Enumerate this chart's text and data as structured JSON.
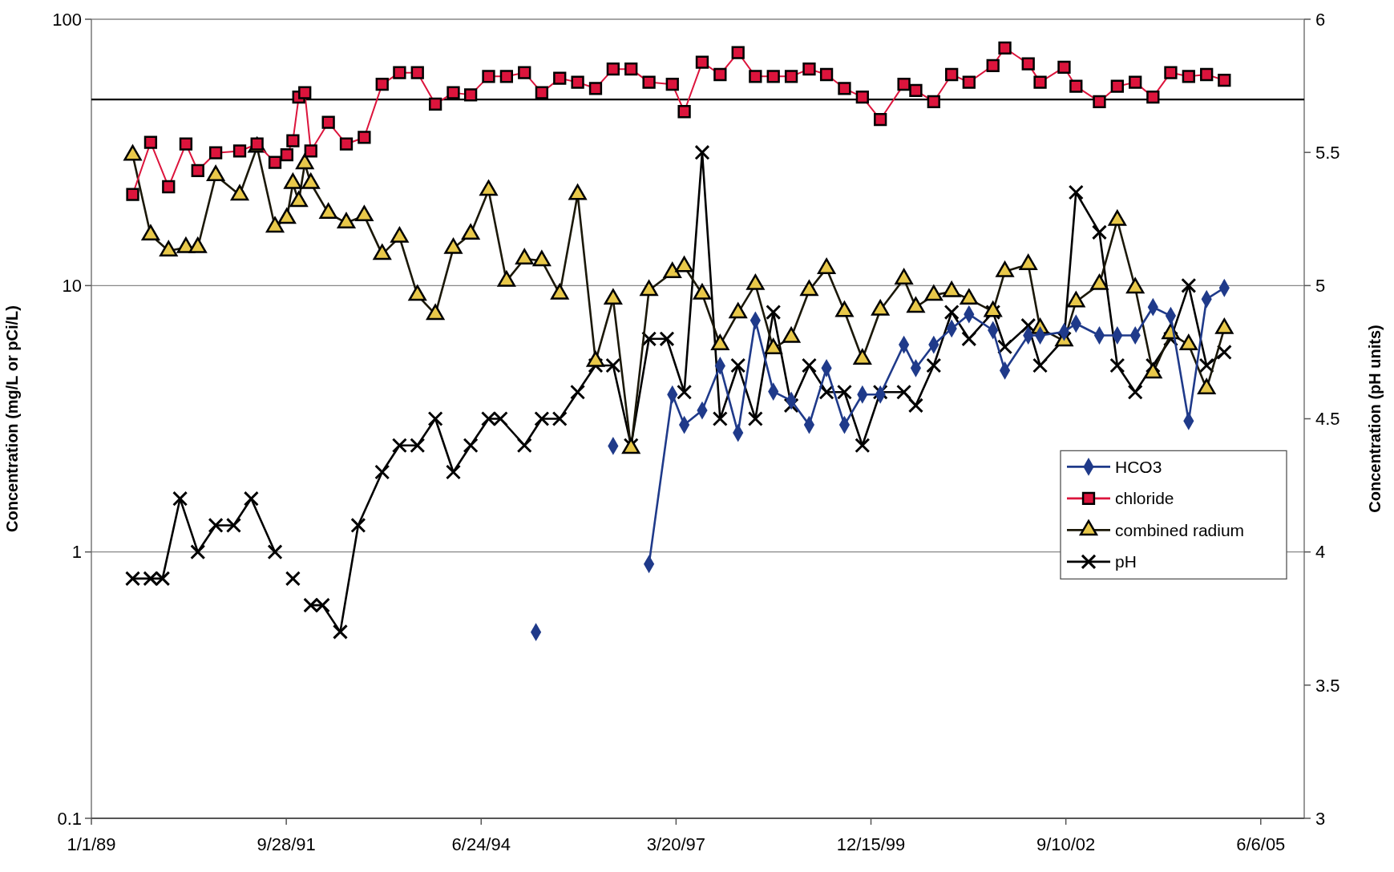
{
  "chart_data": {
    "type": "line",
    "ylabel": "Concentration (mg/L or pCi/L)",
    "y2label": "Concentration (pH units)",
    "xlim": [
      "1989-01-01",
      "2006-01-15"
    ],
    "xticks": [
      {
        "value": "1989-01-01",
        "label": "1/1/89"
      },
      {
        "value": "1991-09-28",
        "label": "9/28/91"
      },
      {
        "value": "1994-06-24",
        "label": "6/24/94"
      },
      {
        "value": "1997-03-20",
        "label": "3/20/97"
      },
      {
        "value": "1999-12-15",
        "label": "12/15/99"
      },
      {
        "value": "2002-09-10",
        "label": "9/10/02"
      },
      {
        "value": "2005-06-06",
        "label": "6/6/05"
      }
    ],
    "ylim": [
      0.1,
      100
    ],
    "yticks": [
      0.1,
      1,
      10,
      100
    ],
    "log": "y",
    "y2lim": [
      3,
      6
    ],
    "y2ticks": [
      3,
      3.5,
      4,
      4.5,
      5,
      5.5,
      6
    ],
    "grid": "y",
    "legend": "right",
    "ref_lines": [
      {
        "axis": "y",
        "value": 50,
        "color": "#000000"
      }
    ],
    "series": [
      {
        "name": "HCO3",
        "color": "#1f3a8a",
        "marker": "diamond",
        "x": [
          "1995-04",
          "1995-10",
          "1996-05",
          "1996-08",
          "1996-11",
          "1997-03",
          "1997-05",
          "1997-08",
          "1997-11",
          "1998-02",
          "1998-05",
          "1998-08",
          "1998-11",
          "1999-02",
          "1999-05",
          "1999-08",
          "1999-11",
          "2000-02",
          "2000-06",
          "2000-08",
          "2000-11",
          "2001-02",
          "2001-05",
          "2001-09",
          "2001-11",
          "2002-03",
          "2002-05",
          "2002-09",
          "2002-11",
          "2003-03",
          "2003-06",
          "2003-09",
          "2003-12",
          "2004-03",
          "2004-06",
          "2004-09",
          "2004-12"
        ],
        "values": [
          0.5,
          null,
          2.5,
          null,
          0.9,
          3.9,
          3.0,
          3.4,
          5.0,
          2.8,
          7.4,
          4.0,
          3.7,
          3.0,
          4.9,
          3.0,
          3.9,
          3.9,
          6.0,
          4.9,
          6.0,
          6.9,
          7.8,
          6.8,
          4.8,
          6.5,
          6.5,
          6.7,
          7.2,
          6.5,
          6.5,
          6.5,
          8.3,
          7.7,
          3.1,
          8.9,
          9.8
        ]
      },
      {
        "name": "chloride",
        "color": "#dc143c",
        "marker": "square",
        "x": [
          "1989-08",
          "1989-11",
          "1990-02",
          "1990-05",
          "1990-07",
          "1990-10",
          "1991-02",
          "1991-05",
          "1991-08",
          "1991-10",
          "1991-11",
          "1991-12",
          "1992-01",
          "1992-02",
          "1992-05",
          "1992-08",
          "1992-11",
          "1993-02",
          "1993-05",
          "1993-08",
          "1993-11",
          "1994-02",
          "1994-05",
          "1994-08",
          "1994-11",
          "1995-02",
          "1995-05",
          "1995-08",
          "1995-11",
          "1996-02",
          "1996-05",
          "1996-08",
          "1996-11",
          "1997-03",
          "1997-05",
          "1997-08",
          "1997-11",
          "1998-02",
          "1998-05",
          "1998-08",
          "1998-11",
          "1999-02",
          "1999-05",
          "1999-08",
          "1999-11",
          "2000-02",
          "2000-06",
          "2000-08",
          "2000-11",
          "2001-02",
          "2001-05",
          "2001-09",
          "2001-11",
          "2002-03",
          "2002-05",
          "2002-09",
          "2002-11",
          "2003-03",
          "2003-06",
          "2003-09",
          "2003-12",
          "2004-03",
          "2004-06",
          "2004-09",
          "2004-12"
        ],
        "values": [
          22,
          34.5,
          23.5,
          34,
          27,
          31.5,
          32,
          34,
          29,
          31,
          35,
          51,
          53,
          32,
          41,
          34,
          36,
          57,
          63,
          63,
          48,
          53,
          52,
          61,
          61,
          63,
          53,
          60,
          58,
          55,
          65,
          65,
          58,
          57,
          45,
          69,
          62,
          75,
          61,
          61,
          61,
          65,
          62,
          55,
          51,
          42,
          57,
          54,
          49,
          62,
          58,
          67,
          78,
          68,
          58,
          66,
          56,
          49,
          56,
          58,
          51,
          63,
          61,
          62,
          59
        ]
      },
      {
        "name": "combined radium",
        "color": "#e8c84a",
        "marker": "triangle",
        "x": [
          "1989-08",
          "1989-11",
          "1990-02",
          "1990-05",
          "1990-07",
          "1990-10",
          "1991-02",
          "1991-05",
          "1991-08",
          "1991-10",
          "1991-11",
          "1991-12",
          "1992-01",
          "1992-02",
          "1992-05",
          "1992-08",
          "1992-11",
          "1993-02",
          "1993-05",
          "1993-08",
          "1993-11",
          "1994-02",
          "1994-05",
          "1994-08",
          "1994-11",
          "1995-02",
          "1995-05",
          "1995-08",
          "1995-11",
          "1996-02",
          "1996-05",
          "1996-08",
          "1996-11",
          "1997-03",
          "1997-05",
          "1997-08",
          "1997-11",
          "1998-02",
          "1998-05",
          "1998-08",
          "1998-11",
          "1999-02",
          "1999-05",
          "1999-08",
          "1999-11",
          "2000-02",
          "2000-06",
          "2000-08",
          "2000-11",
          "2001-02",
          "2001-05",
          "2001-09",
          "2001-11",
          "2002-03",
          "2002-05",
          "2002-09",
          "2002-11",
          "2003-03",
          "2003-06",
          "2003-09",
          "2003-12",
          "2004-03",
          "2004-06",
          "2004-09",
          "2004-12"
        ],
        "values": [
          30.9,
          15.5,
          13.5,
          13.9,
          13.9,
          25.9,
          21.9,
          33.1,
          16.6,
          17.9,
          24.2,
          20.7,
          28.7,
          24.2,
          18.7,
          17.2,
          18.3,
          13.1,
          15.2,
          9.2,
          7.8,
          13.8,
          15.6,
          22.8,
          10.4,
          12.6,
          12.4,
          9.3,
          22.0,
          5.2,
          8.9,
          2.45,
          9.6,
          11.2,
          11.8,
          9.3,
          6.0,
          7.9,
          10.1,
          5.8,
          6.4,
          9.6,
          11.6,
          8.0,
          5.3,
          8.1,
          10.6,
          8.3,
          9.2,
          9.5,
          8.9,
          8.0,
          11.3,
          12.0,
          6.9,
          6.2,
          8.7,
          10.1,
          17.6,
          9.8,
          4.7,
          6.6,
          6.0,
          4.1,
          6.9
        ]
      },
      {
        "name": "pH",
        "color": "#000000",
        "marker": "cross",
        "axis": "y2",
        "x": [
          "1989-08",
          "1989-11",
          "1990-01",
          "1990-04",
          "1990-07",
          "1990-10",
          "1991-01",
          "1991-04",
          "1991-08",
          "1991-09",
          "1991-11",
          "1991-12",
          "1992-02",
          "1992-04",
          "1992-07",
          "1992-10",
          "1993-02",
          "1993-05",
          "1993-08",
          "1993-11",
          "1994-02",
          "1994-05",
          "1994-08",
          "1994-10",
          "1995-02",
          "1995-05",
          "1995-08",
          "1995-11",
          "1996-02",
          "1996-05",
          "1996-08",
          "1996-11",
          "1997-02",
          "1997-05",
          "1997-08",
          "1997-11",
          "1998-02",
          "1998-05",
          "1998-08",
          "1998-11",
          "1999-02",
          "1999-05",
          "1999-08",
          "1999-11",
          "2000-02",
          "2000-06",
          "2000-08",
          "2000-11",
          "2001-02",
          "2001-05",
          "2001-09",
          "2001-11",
          "2002-03",
          "2002-05",
          "2002-09",
          "2002-11",
          "2003-03",
          "2003-06",
          "2003-09",
          "2003-12",
          "2004-03",
          "2004-06",
          "2004-09",
          "2004-12"
        ],
        "values": [
          3.9,
          3.9,
          3.9,
          4.2,
          4.0,
          4.1,
          4.1,
          4.2,
          4.0,
          null,
          3.9,
          null,
          3.8,
          3.8,
          3.7,
          4.1,
          4.3,
          4.4,
          4.4,
          4.5,
          4.3,
          4.4,
          4.5,
          4.5,
          4.4,
          4.5,
          4.5,
          4.6,
          4.7,
          4.7,
          4.4,
          4.8,
          4.8,
          4.6,
          5.5,
          4.5,
          4.7,
          4.5,
          4.9,
          4.55,
          4.7,
          4.6,
          4.6,
          4.4,
          4.6,
          4.6,
          4.55,
          4.7,
          4.9,
          4.8,
          4.9,
          4.77,
          4.85,
          4.7,
          4.8,
          5.35,
          5.2,
          4.7,
          4.6,
          4.7,
          4.8,
          5.0,
          4.7,
          4.75
        ]
      }
    ]
  }
}
